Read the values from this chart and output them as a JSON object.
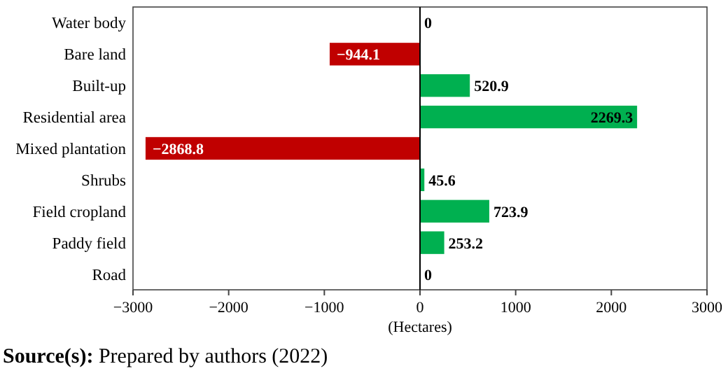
{
  "chart_data": {
    "type": "bar",
    "orientation": "horizontal",
    "categories": [
      "Water body",
      "Bare land",
      "Built-up",
      "Residential area",
      "Mixed plantation",
      "Shrubs",
      "Field cropland",
      "Paddy field",
      "Road"
    ],
    "values": [
      0,
      -944.1,
      520.9,
      2269.3,
      -2868.8,
      45.6,
      723.9,
      253.2,
      0
    ],
    "value_labels": [
      "0",
      "−944.1",
      "520.9",
      "2269.3",
      "−2868.8",
      "45.6",
      "723.9",
      "253.2",
      "0"
    ],
    "colors": [
      "#00b050",
      "#c00000",
      "#00b050",
      "#00b050",
      "#c00000",
      "#00b050",
      "#00b050",
      "#00b050",
      "#00b050"
    ],
    "xlim": [
      -3000,
      3000
    ],
    "xticks": [
      {
        "value": -3000,
        "label": "−3000"
      },
      {
        "value": -2000,
        "label": "−2000"
      },
      {
        "value": -1000,
        "label": "−1000"
      },
      0,
      1000,
      2000,
      3000
    ],
    "xlabel": "(Hectares)",
    "annotations": [
      "Source(s): Prepared by authors (2022)"
    ]
  }
}
